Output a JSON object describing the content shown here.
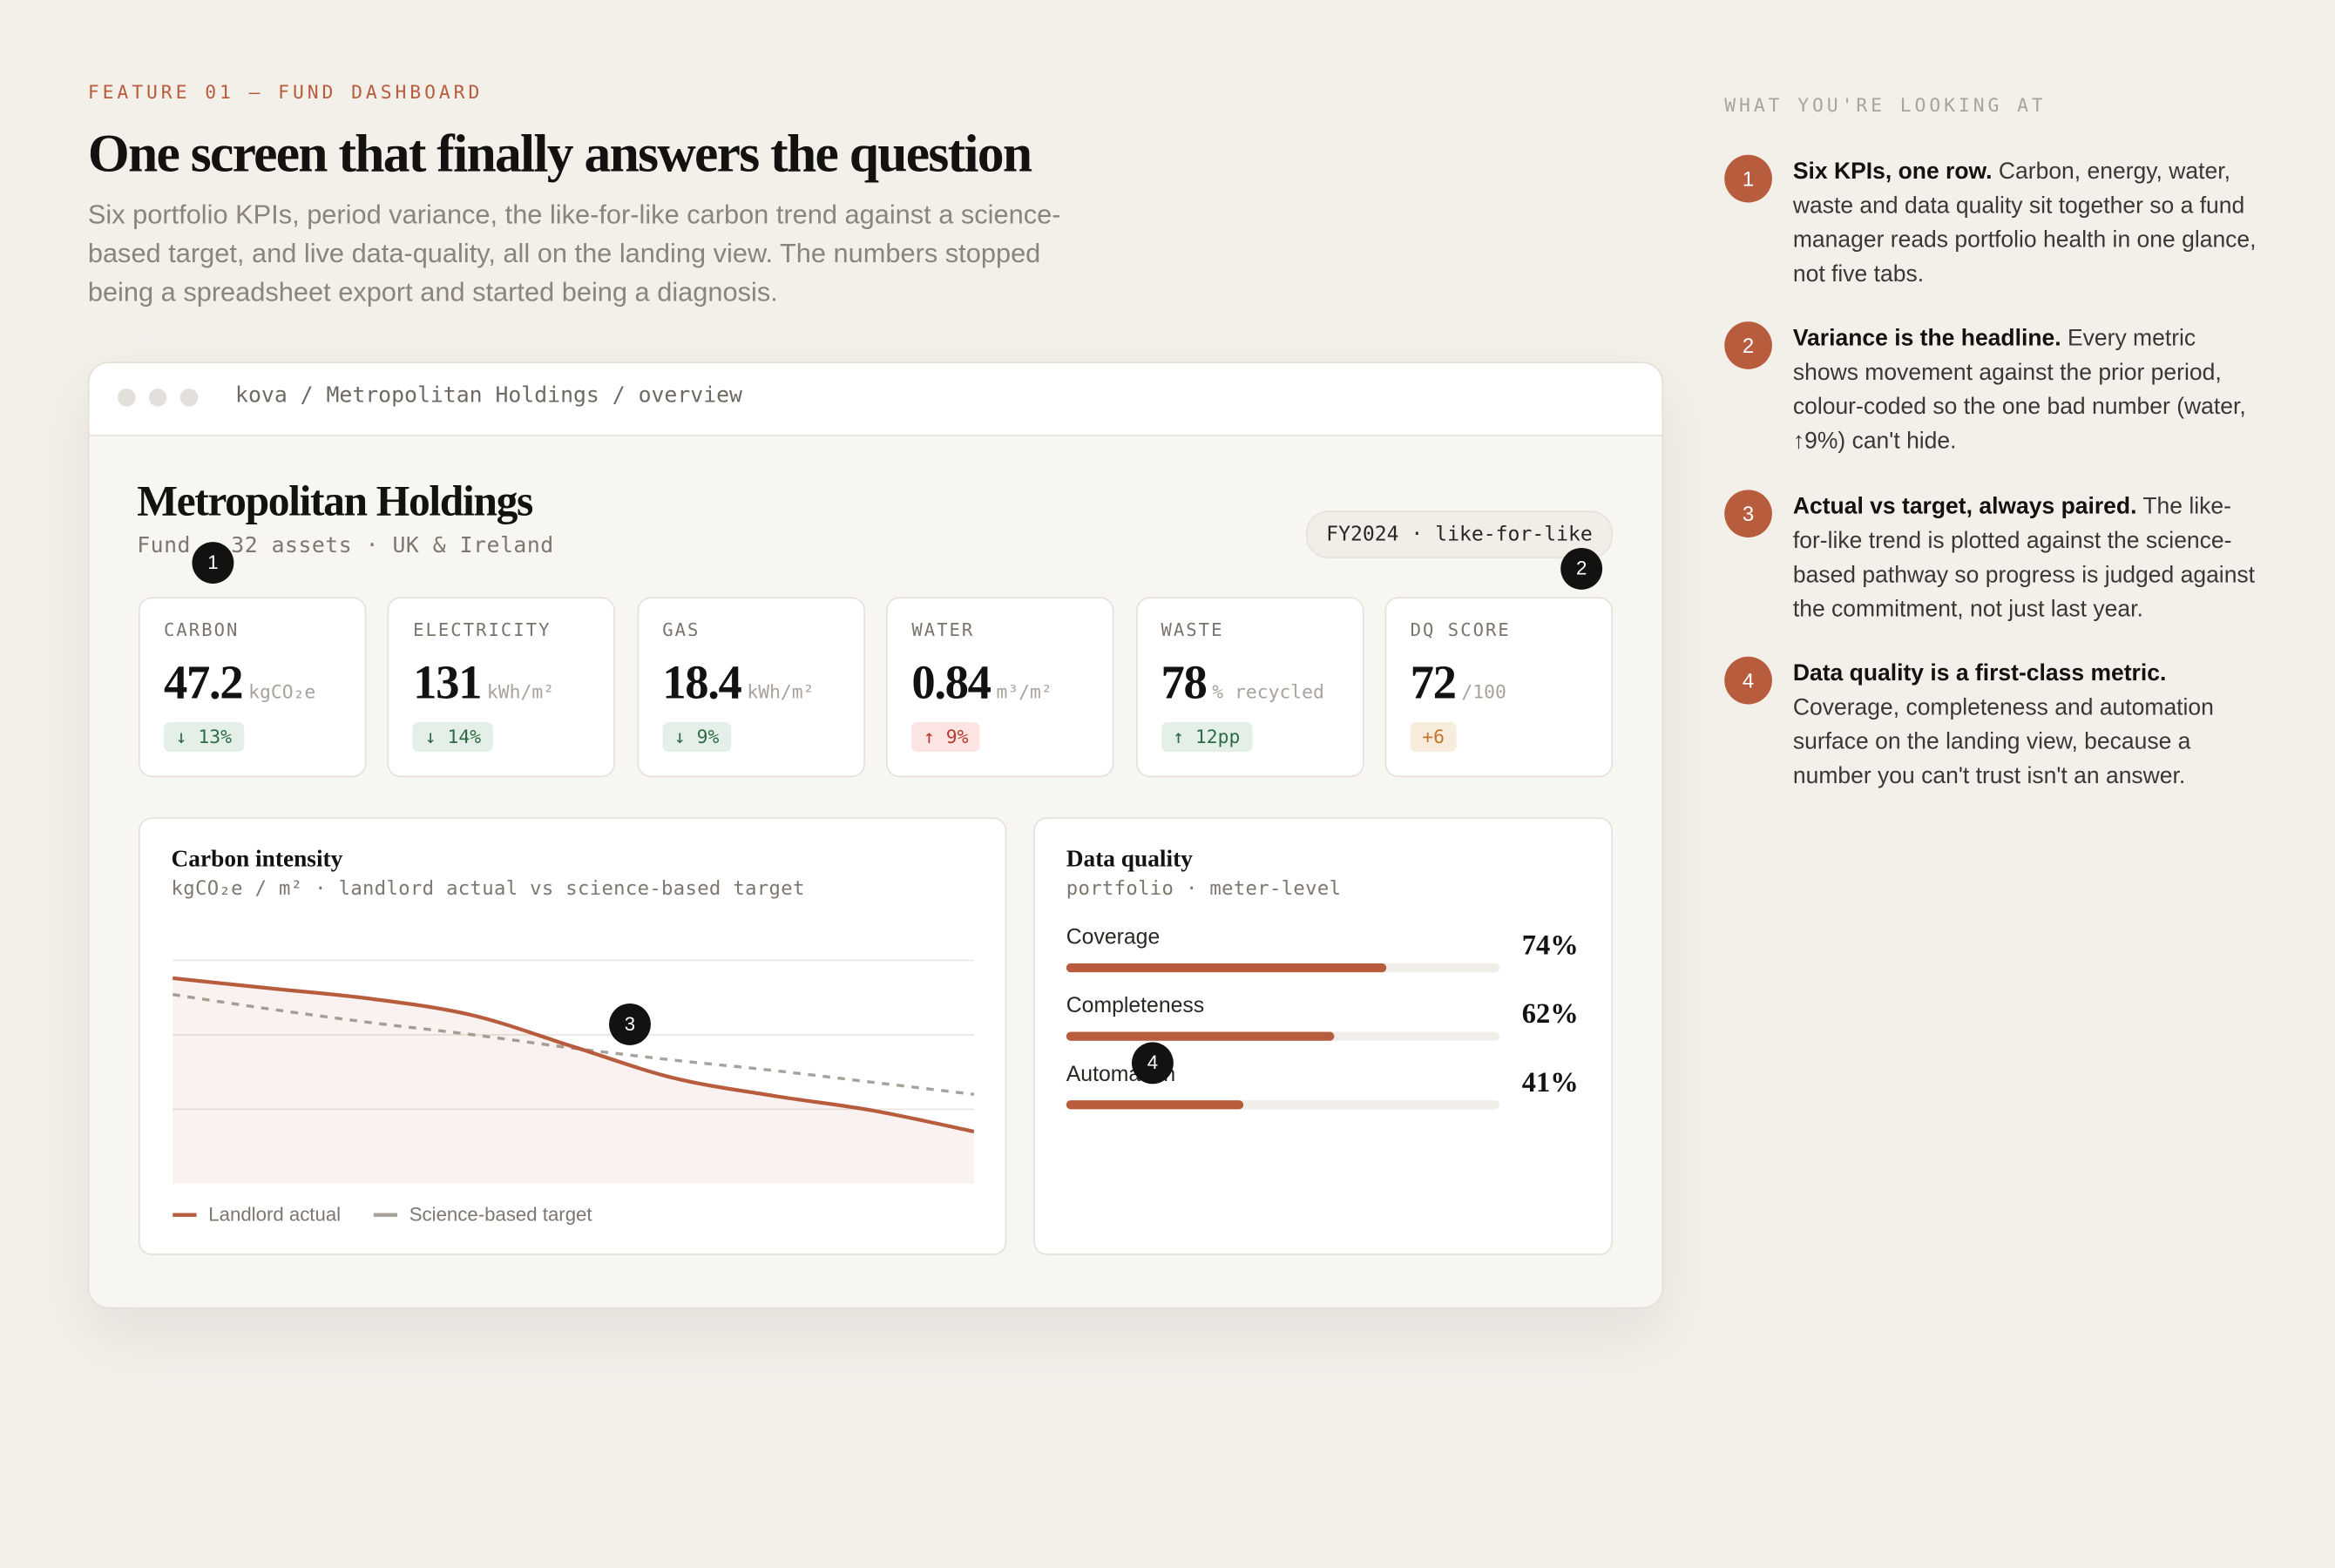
{
  "header": {
    "eyebrow": "FEATURE 01 — FUND DASHBOARD",
    "title": "One screen that finally answers the question",
    "lede": "Six portfolio KPIs, period variance, the like-for-like carbon trend against a science-based target, and live data-quality, all on the landing view. The numbers stopped being a spreadsheet export and started being a diagnosis."
  },
  "window": {
    "path": "kova / Metropolitan Holdings / overview",
    "fund": "Metropolitan Holdings",
    "meta": "Fund · 32 assets · UK & Ireland",
    "period": "FY2024 · like-for-like"
  },
  "kpis": [
    {
      "label": "CARBON",
      "value": "47.2",
      "unit": "kgCO₂e",
      "delta": "↓ 13%",
      "tone": "good"
    },
    {
      "label": "ELECTRICITY",
      "value": "131",
      "unit": "kWh/m²",
      "delta": "↓ 14%",
      "tone": "good"
    },
    {
      "label": "GAS",
      "value": "18.4",
      "unit": "kWh/m²",
      "delta": "↓ 9%",
      "tone": "good"
    },
    {
      "label": "WATER",
      "value": "0.84",
      "unit": "m³/m²",
      "delta": "↑ 9%",
      "tone": "bad"
    },
    {
      "label": "WASTE",
      "value": "78",
      "unit": "% recycled",
      "delta": "↑ 12pp",
      "tone": "good"
    },
    {
      "label": "DQ SCORE",
      "value": "72",
      "unit": "/100",
      "delta": "+6",
      "tone": "neutral"
    }
  ],
  "chart_data": {
    "type": "line",
    "title": "Carbon intensity",
    "subtitle": "kgCO₂e / m² · landlord actual vs science-based target",
    "ylim": [
      0,
      3.5
    ],
    "yticks": [
      1,
      2,
      3
    ],
    "grid": true,
    "series": [
      {
        "name": "Landlord actual",
        "color": "#b85c3e",
        "values": [
          2.76,
          2.62,
          2.48,
          2.26,
          1.84,
          1.42,
          1.18,
          0.98,
          0.7
        ]
      },
      {
        "name": "Science-based target",
        "color": "#a8a29a",
        "values": [
          2.54,
          2.34,
          2.16,
          2.0,
          1.82,
          1.66,
          1.52,
          1.36,
          1.2
        ]
      }
    ]
  },
  "data_quality": {
    "title": "Data quality",
    "subtitle": "portfolio · meter-level",
    "xlim": [
      0,
      100
    ],
    "color": "#b85c3e",
    "rows": [
      {
        "label": "Coverage",
        "value": 74,
        "value_label": "74%"
      },
      {
        "label": "Completeness",
        "value": 62,
        "value_label": "62%"
      },
      {
        "label": "Automation",
        "value": 41,
        "value_label": "41%"
      }
    ]
  },
  "sidebar": {
    "heading": "WHAT YOU'RE LOOKING AT",
    "items": [
      {
        "marker": "1",
        "title": "Six KPIs, one row.",
        "text": "Carbon, energy, water, waste and data quality sit together so a fund manager reads portfolio health in one glance, not five tabs."
      },
      {
        "marker": "2",
        "title": "Variance is the headline.",
        "text": "Every metric shows movement against the prior period, colour-coded so the one bad number (water, ↑9%) can't hide."
      },
      {
        "marker": "3",
        "title": "Actual vs target, always paired.",
        "text": "The like-for-like trend is plotted against the science-based pathway so progress is judged against the commitment, not just last year."
      },
      {
        "marker": "4",
        "title": "Data quality is a first-class metric.",
        "text": "Coverage, completeness and automation surface on the landing view, because a number you can't trust isn't an answer."
      }
    ]
  }
}
